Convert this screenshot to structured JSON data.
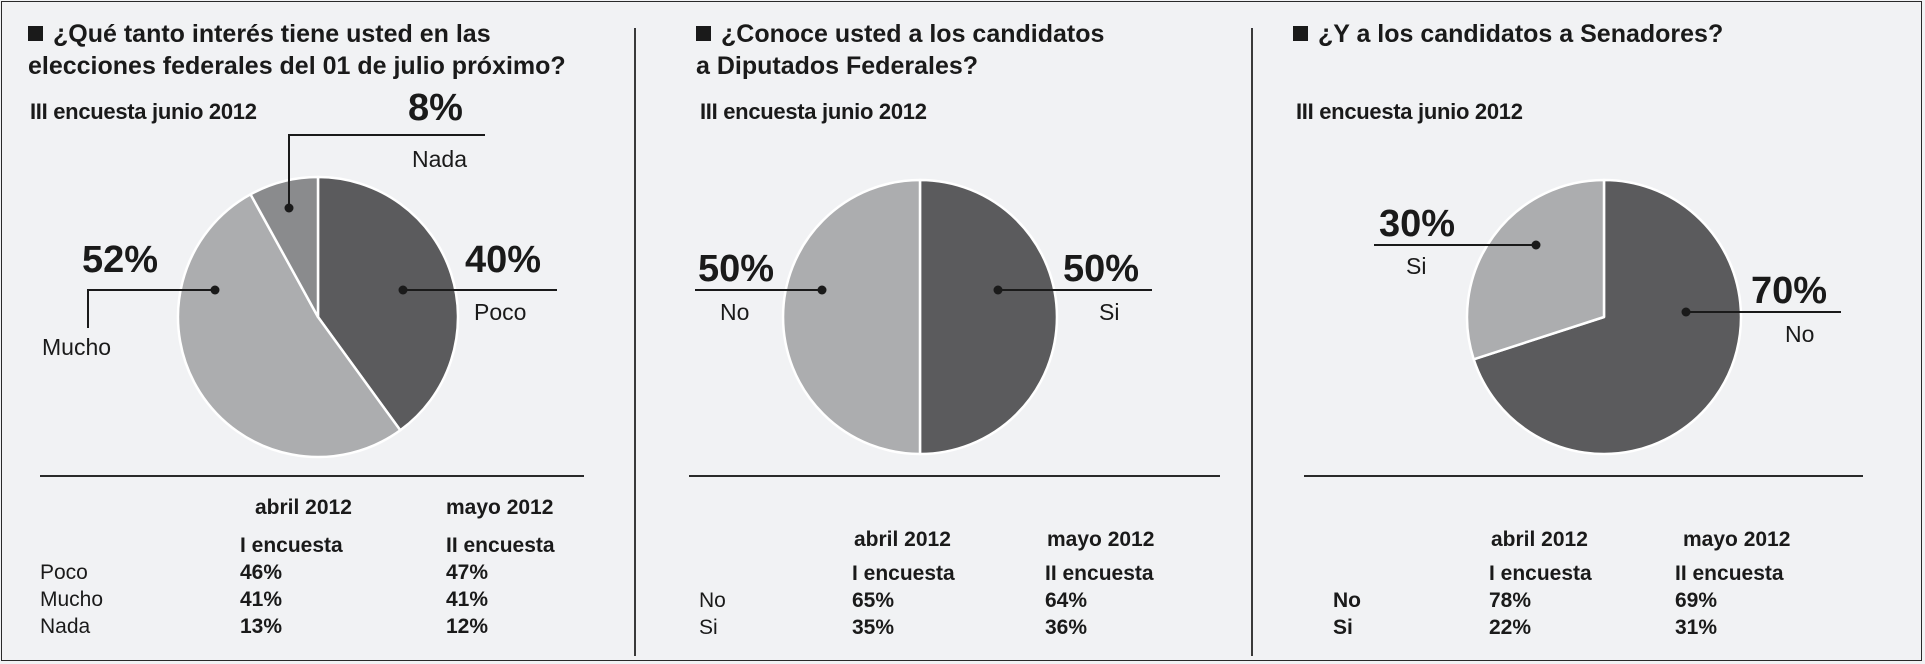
{
  "colors": {
    "dark": "#5b5b5d",
    "light": "#acadaf",
    "medium": "#8a8b8d",
    "edge": "#ffffff"
  },
  "panels": [
    {
      "title_lines": [
        "¿Qué tanto interés tiene usted en las",
        "elecciones federales del 01 de julio próximo?"
      ],
      "subtitle": "III encuesta junio 2012",
      "table": {
        "col1_month": "abril 2012",
        "col2_month": "mayo 2012",
        "col1_survey": "I encuesta",
        "col2_survey": "II encuesta",
        "rows": [
          {
            "label": "Poco",
            "v1": "46%",
            "v2": "47%"
          },
          {
            "label": "Mucho",
            "v1": "41%",
            "v2": "41%"
          },
          {
            "label": "Nada",
            "v1": "13%",
            "v2": "12%"
          }
        ]
      }
    },
    {
      "title_lines": [
        "¿Conoce usted a los candidatos",
        "a Diputados Federales?"
      ],
      "subtitle": "III encuesta junio 2012",
      "table": {
        "col1_month": "abril 2012",
        "col2_month": "mayo 2012",
        "col1_survey": "I encuesta",
        "col2_survey": "II encuesta",
        "rows": [
          {
            "label": "No",
            "v1": "65%",
            "v2": "64%"
          },
          {
            "label": "Si",
            "v1": "35%",
            "v2": "36%"
          }
        ]
      }
    },
    {
      "title_lines": [
        "¿Y a los candidatos a Senadores?"
      ],
      "subtitle": "III encuesta junio 2012",
      "table": {
        "col1_month": "abril 2012",
        "col2_month": "mayo 2012",
        "col1_survey": "I encuesta",
        "col2_survey": "II encuesta",
        "rows": [
          {
            "label": "No",
            "v1": "78%",
            "v2": "69%"
          },
          {
            "label": "Si",
            "v1": "22%",
            "v2": "31%"
          }
        ]
      }
    }
  ],
  "chart_data": [
    {
      "type": "pie",
      "title": "¿Qué tanto interés tiene usted en las elecciones federales del 01 de julio próximo?",
      "subtitle": "III encuesta junio 2012",
      "slices": [
        {
          "label": "Poco",
          "value": 40,
          "display": "40%",
          "color": "dark"
        },
        {
          "label": "Mucho",
          "value": 52,
          "display": "52%",
          "color": "light"
        },
        {
          "label": "Nada",
          "value": 8,
          "display": "8%",
          "color": "medium"
        }
      ]
    },
    {
      "type": "pie",
      "title": "¿Conoce usted a los candidatos a Diputados Federales?",
      "subtitle": "III encuesta junio 2012",
      "slices": [
        {
          "label": "Si",
          "value": 50,
          "display": "50%",
          "color": "dark"
        },
        {
          "label": "No",
          "value": 50,
          "display": "50%",
          "color": "light"
        }
      ]
    },
    {
      "type": "pie",
      "title": "¿Y a los candidatos a Senadores?",
      "subtitle": "III encuesta junio 2012",
      "slices": [
        {
          "label": "No",
          "value": 70,
          "display": "70%",
          "color": "dark"
        },
        {
          "label": "Si",
          "value": 30,
          "display": "30%",
          "color": "light"
        }
      ]
    }
  ]
}
